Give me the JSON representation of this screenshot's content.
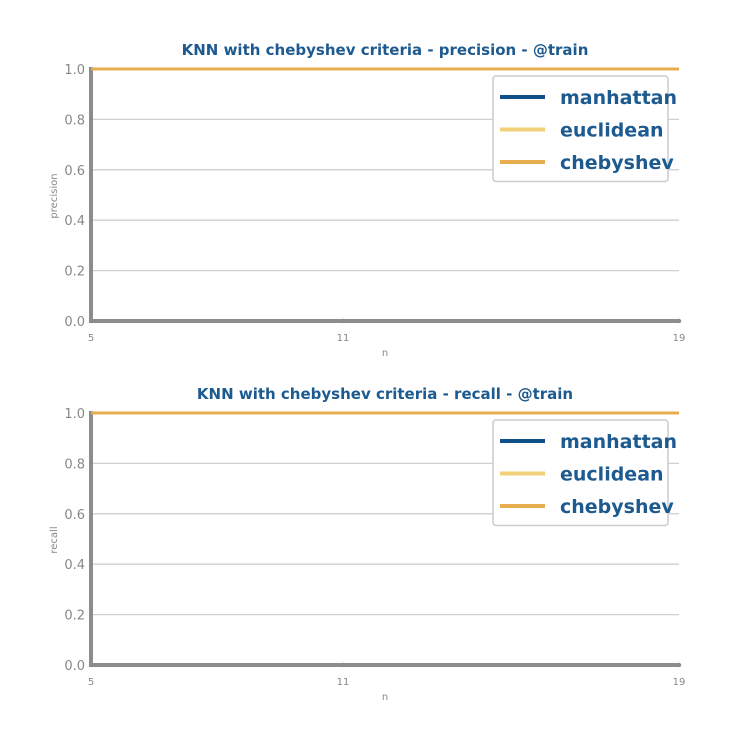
{
  "chart_data": [
    {
      "type": "line",
      "title": "KNN with chebyshev criteria - precision - @train",
      "xlabel": "n",
      "ylabel": "precision",
      "x": [
        5,
        11,
        19
      ],
      "xticks": [
        "5",
        "11",
        "19"
      ],
      "xlim": [
        5,
        19
      ],
      "ylim": [
        0,
        1
      ],
      "yticks": [
        "0.0",
        "0.2",
        "0.4",
        "0.6",
        "0.8",
        "1.0"
      ],
      "grid": true,
      "legend_position": "top-right",
      "series": [
        {
          "name": "manhattan",
          "color": "#0f4f8a",
          "values": [
            1.0,
            1.0,
            1.0
          ]
        },
        {
          "name": "euclidean",
          "color": "#f2d07a",
          "values": [
            1.0,
            1.0,
            1.0
          ]
        },
        {
          "name": "chebyshev",
          "color": "#e8ad4e",
          "values": [
            1.0,
            1.0,
            1.0
          ]
        }
      ]
    },
    {
      "type": "line",
      "title": "KNN with chebyshev criteria - recall - @train",
      "xlabel": "n",
      "ylabel": "recall",
      "x": [
        5,
        11,
        19
      ],
      "xticks": [
        "5",
        "11",
        "19"
      ],
      "xlim": [
        5,
        19
      ],
      "ylim": [
        0,
        1
      ],
      "yticks": [
        "0.0",
        "0.2",
        "0.4",
        "0.6",
        "0.8",
        "1.0"
      ],
      "grid": true,
      "legend_position": "top-right",
      "series": [
        {
          "name": "manhattan",
          "color": "#0f4f8a",
          "values": [
            1.0,
            1.0,
            1.0
          ]
        },
        {
          "name": "euclidean",
          "color": "#f2d07a",
          "values": [
            1.0,
            1.0,
            1.0
          ]
        },
        {
          "name": "chebyshev",
          "color": "#e8ad4e",
          "values": [
            1.0,
            1.0,
            1.0
          ]
        }
      ]
    }
  ]
}
